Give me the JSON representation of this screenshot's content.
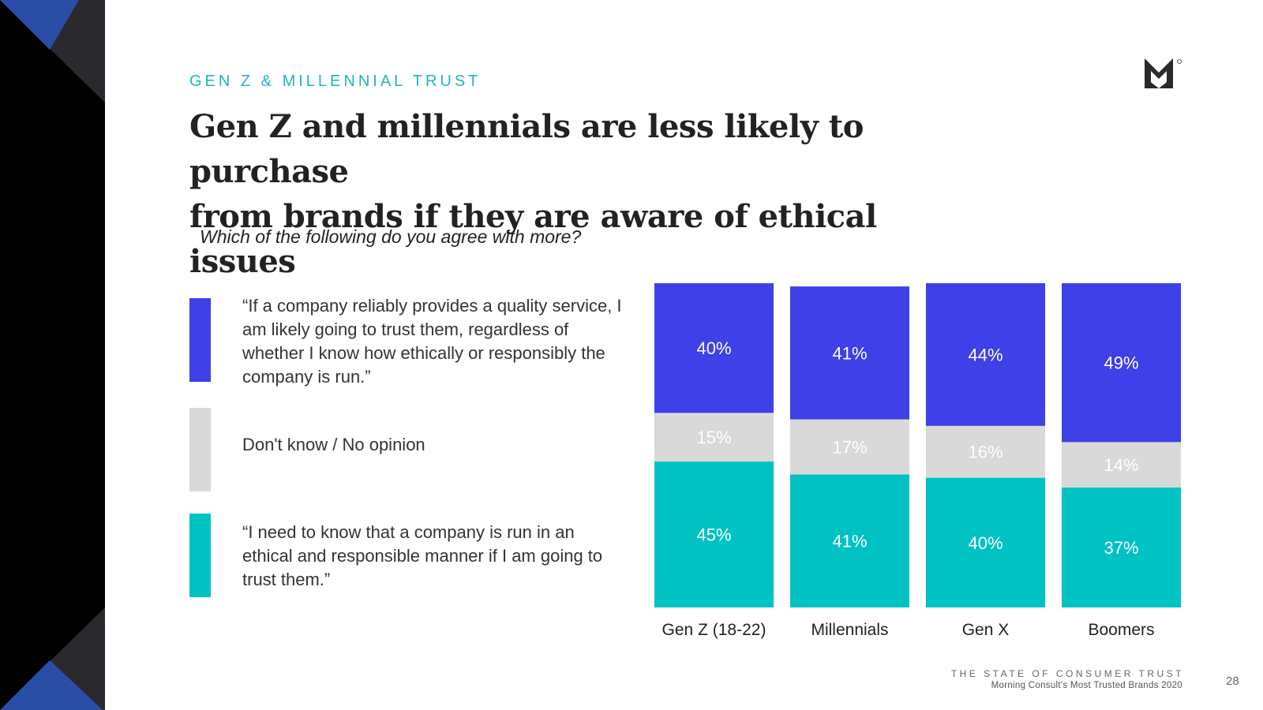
{
  "header": {
    "kicker": "GEN Z & MILLENNIAL TRUST",
    "headline_line1": "Gen Z and millennials are less likely to purchase",
    "headline_line2": "from brands if they are aware of ethical issues",
    "question": "Which of the following do you agree with more?"
  },
  "legend": [
    {
      "text": "“If a company reliably provides a quality service, I am likely going to trust them, regardless of whether I know how ethically or responsibly the company is run.”",
      "color": "#4040e8"
    },
    {
      "text": "Don't know / No opinion",
      "color": "#d9d9d9"
    },
    {
      "text": "“I need to know that a company is run in an ethical and responsible manner if I am going to trust them.”",
      "color": "#00c2c2"
    }
  ],
  "chart_data": {
    "type": "bar",
    "stacked": true,
    "title": "",
    "xlabel": "",
    "ylabel": "",
    "ylim": [
      0,
      100
    ],
    "categories": [
      "Gen Z (18-22)",
      "Millennials",
      "Gen X",
      "Boomers"
    ],
    "series": [
      {
        "name": "I need to know that a company is run in an ethical and responsible manner",
        "color": "#00c2c2",
        "values": [
          45,
          41,
          40,
          37
        ]
      },
      {
        "name": "Don't know / No opinion",
        "color": "#d9d9d9",
        "values": [
          15,
          17,
          16,
          14
        ]
      },
      {
        "name": "If a company reliably provides a quality service, I am likely going to trust them",
        "color": "#4040e8",
        "values": [
          40,
          41,
          44,
          49
        ]
      }
    ],
    "data_labels": [
      [
        "45%",
        "41%",
        "40%",
        "37%"
      ],
      [
        "15%",
        "17%",
        "16%",
        "14%"
      ],
      [
        "40%",
        "41%",
        "44%",
        "49%"
      ]
    ]
  },
  "footer": {
    "report_title": "THE STATE OF CONSUMER TRUST",
    "report_subtitle": "Morning Consult's Most Trusted Brands 2020",
    "page_number": "28"
  },
  "colors": {
    "accent_teal": "#1fb5c3",
    "brand_blue": "#2a4ea6",
    "dark": "#2a2a2e"
  }
}
